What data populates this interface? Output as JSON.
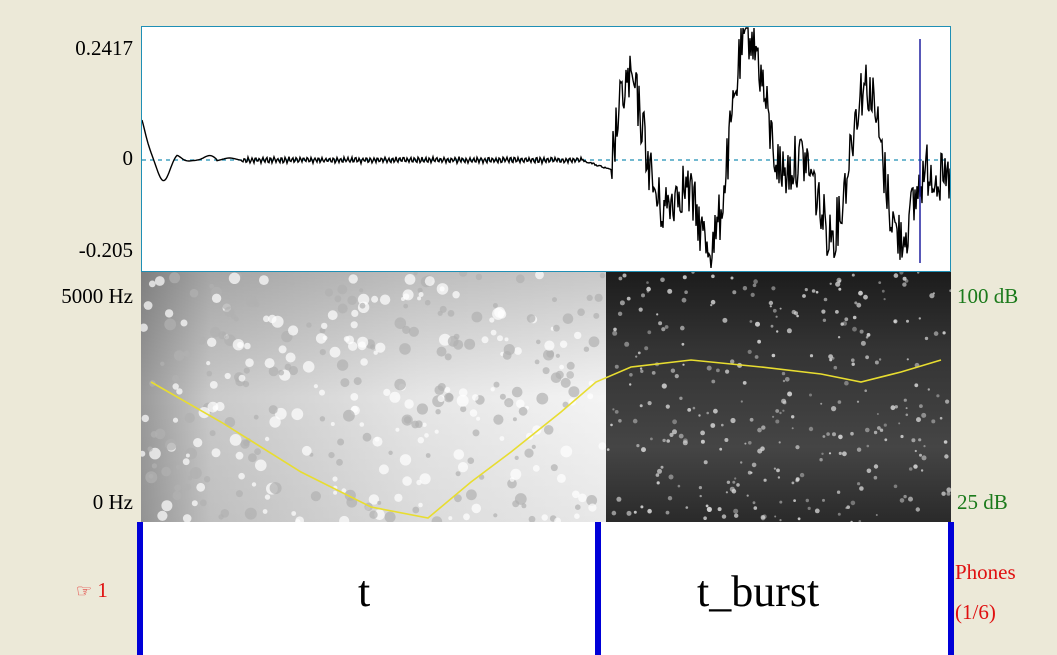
{
  "waveform": {
    "y_max_label": "0.2417",
    "y_zero_label": "0",
    "y_min_label": "-0.205"
  },
  "spectrogram": {
    "freq_top_label": "5000 Hz",
    "freq_bottom_label": "0 Hz",
    "db_top_label": "100 dB",
    "db_bottom_label": "25 dB",
    "intensity_color": "#e8dd30"
  },
  "tier": {
    "number": "1",
    "pointer_glyph": "☞",
    "name": "Phones",
    "position": "(1/6)",
    "intervals": [
      {
        "label": "t"
      },
      {
        "label": "t_burst"
      }
    ]
  },
  "colors": {
    "boundary": "#0000d8",
    "zero_line": "#1f8fb5",
    "cursor": "#2020a0",
    "tier_label": "#e01010",
    "db_label": "#1b7a1b"
  }
}
